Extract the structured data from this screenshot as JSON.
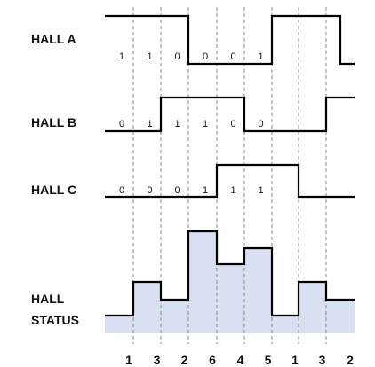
{
  "signals": [
    {
      "label": "HALL A",
      "levels": [
        1,
        1,
        1,
        0,
        0,
        0,
        1,
        1,
        1,
        0,
        0
      ],
      "bits": [
        "1",
        "1",
        "0",
        "0",
        "0",
        "1"
      ]
    },
    {
      "label": "HALL B",
      "levels": [
        0,
        0,
        1,
        1,
        1,
        0,
        0,
        0,
        1,
        1,
        1
      ],
      "bits": [
        "0",
        "1",
        "1",
        "1",
        "0",
        "0"
      ]
    },
    {
      "label": "HALL C",
      "levels": [
        0,
        0,
        0,
        0,
        1,
        1,
        1,
        0,
        0,
        0,
        0
      ],
      "bits": [
        "0",
        "0",
        "0",
        "1",
        "1",
        "1"
      ]
    }
  ],
  "status": {
    "label_line1": "HALL",
    "label_line2": "STATUS",
    "values": [
      1,
      3,
      2,
      6,
      4,
      5,
      1,
      3,
      2
    ]
  },
  "sequence_labels": [
    "1",
    "3",
    "2",
    "6",
    "4",
    "5",
    "1",
    "3",
    "2"
  ],
  "colors": {
    "wave": "#000000",
    "status_fill": "#d9e0f2",
    "grid": "#8a8a8a"
  }
}
